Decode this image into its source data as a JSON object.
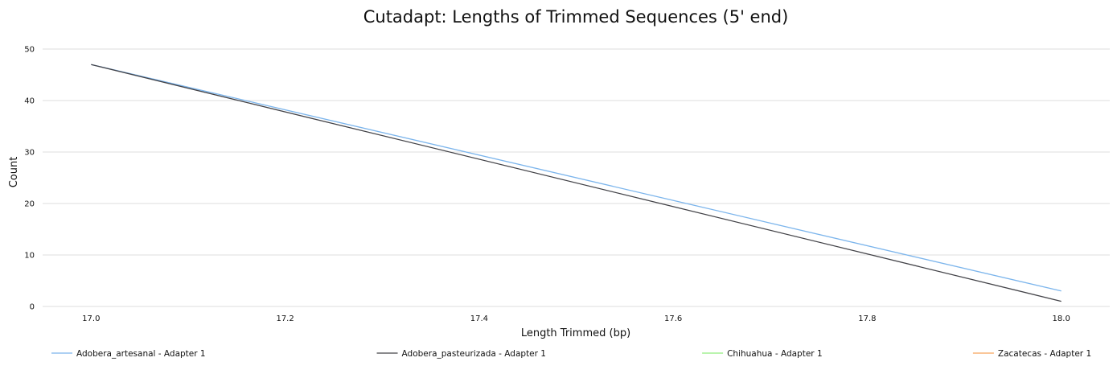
{
  "chart_data": {
    "type": "line",
    "title": "Cutadapt: Lengths of Trimmed Sequences (5' end)",
    "xlabel": "Length Trimmed (bp)",
    "ylabel": "Count",
    "xlim": [
      16.95,
      18.05
    ],
    "ylim": [
      0,
      50
    ],
    "x_ticks": [
      "17.0",
      "17.2",
      "17.4",
      "17.6",
      "17.8",
      "18.0"
    ],
    "y_ticks": [
      "0",
      "10",
      "20",
      "30",
      "40",
      "50"
    ],
    "grid": "horizontal",
    "legend_position": "bottom",
    "series": [
      {
        "name": "Adobera_artesanal - Adapter 1",
        "color": "#7cb5ec",
        "x": [
          17,
          18
        ],
        "y": [
          47,
          3
        ]
      },
      {
        "name": "Adobera_pasteurizada - Adapter 1",
        "color": "#434348",
        "x": [
          17,
          18
        ],
        "y": [
          47,
          1
        ]
      },
      {
        "name": "Chihuahua - Adapter 1",
        "color": "#90ed7d",
        "x": [],
        "y": []
      },
      {
        "name": "Zacatecas - Adapter 1",
        "color": "#f7a35c",
        "x": [],
        "y": []
      }
    ]
  }
}
